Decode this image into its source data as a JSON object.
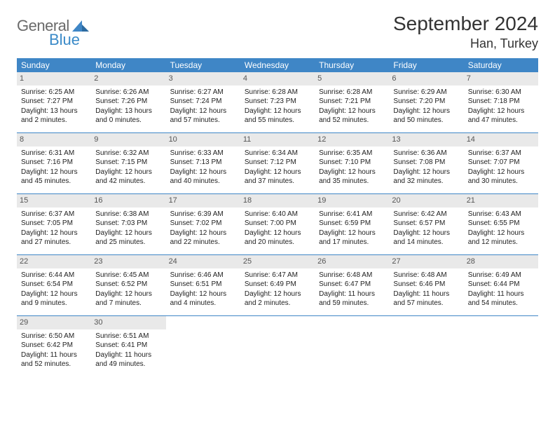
{
  "logo": {
    "text1": "General",
    "text2": "Blue",
    "icon_color": "#3f86c6"
  },
  "title": "September 2024",
  "subtitle": "Han, Turkey",
  "colors": {
    "header_bg": "#3f86c6",
    "header_text": "#ffffff",
    "daynum_bg": "#e9e9e9",
    "daynum_text": "#555555",
    "body_text": "#222222",
    "week_border": "#3f86c6",
    "page_bg": "#ffffff"
  },
  "fonts": {
    "title_size": 28,
    "subtitle_size": 18,
    "weekday_size": 12,
    "daynum_size": 11,
    "body_size": 10
  },
  "weekdays": [
    "Sunday",
    "Monday",
    "Tuesday",
    "Wednesday",
    "Thursday",
    "Friday",
    "Saturday"
  ],
  "days": [
    {
      "n": "1",
      "sunrise": "Sunrise: 6:25 AM",
      "sunset": "Sunset: 7:27 PM",
      "daylight": "Daylight: 13 hours and 2 minutes."
    },
    {
      "n": "2",
      "sunrise": "Sunrise: 6:26 AM",
      "sunset": "Sunset: 7:26 PM",
      "daylight": "Daylight: 13 hours and 0 minutes."
    },
    {
      "n": "3",
      "sunrise": "Sunrise: 6:27 AM",
      "sunset": "Sunset: 7:24 PM",
      "daylight": "Daylight: 12 hours and 57 minutes."
    },
    {
      "n": "4",
      "sunrise": "Sunrise: 6:28 AM",
      "sunset": "Sunset: 7:23 PM",
      "daylight": "Daylight: 12 hours and 55 minutes."
    },
    {
      "n": "5",
      "sunrise": "Sunrise: 6:28 AM",
      "sunset": "Sunset: 7:21 PM",
      "daylight": "Daylight: 12 hours and 52 minutes."
    },
    {
      "n": "6",
      "sunrise": "Sunrise: 6:29 AM",
      "sunset": "Sunset: 7:20 PM",
      "daylight": "Daylight: 12 hours and 50 minutes."
    },
    {
      "n": "7",
      "sunrise": "Sunrise: 6:30 AM",
      "sunset": "Sunset: 7:18 PM",
      "daylight": "Daylight: 12 hours and 47 minutes."
    },
    {
      "n": "8",
      "sunrise": "Sunrise: 6:31 AM",
      "sunset": "Sunset: 7:16 PM",
      "daylight": "Daylight: 12 hours and 45 minutes."
    },
    {
      "n": "9",
      "sunrise": "Sunrise: 6:32 AM",
      "sunset": "Sunset: 7:15 PM",
      "daylight": "Daylight: 12 hours and 42 minutes."
    },
    {
      "n": "10",
      "sunrise": "Sunrise: 6:33 AM",
      "sunset": "Sunset: 7:13 PM",
      "daylight": "Daylight: 12 hours and 40 minutes."
    },
    {
      "n": "11",
      "sunrise": "Sunrise: 6:34 AM",
      "sunset": "Sunset: 7:12 PM",
      "daylight": "Daylight: 12 hours and 37 minutes."
    },
    {
      "n": "12",
      "sunrise": "Sunrise: 6:35 AM",
      "sunset": "Sunset: 7:10 PM",
      "daylight": "Daylight: 12 hours and 35 minutes."
    },
    {
      "n": "13",
      "sunrise": "Sunrise: 6:36 AM",
      "sunset": "Sunset: 7:08 PM",
      "daylight": "Daylight: 12 hours and 32 minutes."
    },
    {
      "n": "14",
      "sunrise": "Sunrise: 6:37 AM",
      "sunset": "Sunset: 7:07 PM",
      "daylight": "Daylight: 12 hours and 30 minutes."
    },
    {
      "n": "15",
      "sunrise": "Sunrise: 6:37 AM",
      "sunset": "Sunset: 7:05 PM",
      "daylight": "Daylight: 12 hours and 27 minutes."
    },
    {
      "n": "16",
      "sunrise": "Sunrise: 6:38 AM",
      "sunset": "Sunset: 7:03 PM",
      "daylight": "Daylight: 12 hours and 25 minutes."
    },
    {
      "n": "17",
      "sunrise": "Sunrise: 6:39 AM",
      "sunset": "Sunset: 7:02 PM",
      "daylight": "Daylight: 12 hours and 22 minutes."
    },
    {
      "n": "18",
      "sunrise": "Sunrise: 6:40 AM",
      "sunset": "Sunset: 7:00 PM",
      "daylight": "Daylight: 12 hours and 20 minutes."
    },
    {
      "n": "19",
      "sunrise": "Sunrise: 6:41 AM",
      "sunset": "Sunset: 6:59 PM",
      "daylight": "Daylight: 12 hours and 17 minutes."
    },
    {
      "n": "20",
      "sunrise": "Sunrise: 6:42 AM",
      "sunset": "Sunset: 6:57 PM",
      "daylight": "Daylight: 12 hours and 14 minutes."
    },
    {
      "n": "21",
      "sunrise": "Sunrise: 6:43 AM",
      "sunset": "Sunset: 6:55 PM",
      "daylight": "Daylight: 12 hours and 12 minutes."
    },
    {
      "n": "22",
      "sunrise": "Sunrise: 6:44 AM",
      "sunset": "Sunset: 6:54 PM",
      "daylight": "Daylight: 12 hours and 9 minutes."
    },
    {
      "n": "23",
      "sunrise": "Sunrise: 6:45 AM",
      "sunset": "Sunset: 6:52 PM",
      "daylight": "Daylight: 12 hours and 7 minutes."
    },
    {
      "n": "24",
      "sunrise": "Sunrise: 6:46 AM",
      "sunset": "Sunset: 6:51 PM",
      "daylight": "Daylight: 12 hours and 4 minutes."
    },
    {
      "n": "25",
      "sunrise": "Sunrise: 6:47 AM",
      "sunset": "Sunset: 6:49 PM",
      "daylight": "Daylight: 12 hours and 2 minutes."
    },
    {
      "n": "26",
      "sunrise": "Sunrise: 6:48 AM",
      "sunset": "Sunset: 6:47 PM",
      "daylight": "Daylight: 11 hours and 59 minutes."
    },
    {
      "n": "27",
      "sunrise": "Sunrise: 6:48 AM",
      "sunset": "Sunset: 6:46 PM",
      "daylight": "Daylight: 11 hours and 57 minutes."
    },
    {
      "n": "28",
      "sunrise": "Sunrise: 6:49 AM",
      "sunset": "Sunset: 6:44 PM",
      "daylight": "Daylight: 11 hours and 54 minutes."
    },
    {
      "n": "29",
      "sunrise": "Sunrise: 6:50 AM",
      "sunset": "Sunset: 6:42 PM",
      "daylight": "Daylight: 11 hours and 52 minutes."
    },
    {
      "n": "30",
      "sunrise": "Sunrise: 6:51 AM",
      "sunset": "Sunset: 6:41 PM",
      "daylight": "Daylight: 11 hours and 49 minutes."
    }
  ]
}
